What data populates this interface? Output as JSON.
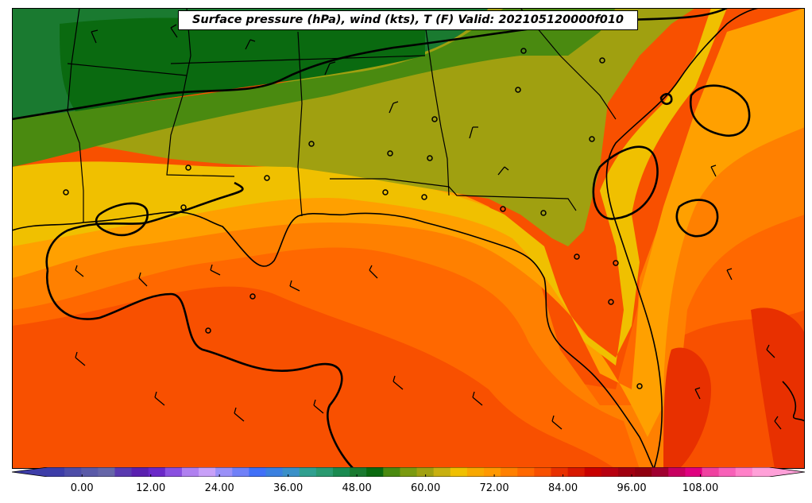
{
  "title": "Surface pressure (hPa), wind (kts), T (F) Valid: 202105120000f010",
  "colorbar": {
    "ticks": [
      "0.00",
      "12.00",
      "24.00",
      "36.00",
      "48.00",
      "60.00",
      "72.00",
      "84.00",
      "96.00",
      "108.00"
    ],
    "tick_values": [
      0,
      12,
      24,
      36,
      48,
      60,
      72,
      84,
      96,
      108
    ],
    "range": [
      -6,
      120
    ],
    "extend": "both",
    "colors": [
      "#3d3da8",
      "#4d4da8",
      "#5a5aa8",
      "#6666a8",
      "#5a3ab0",
      "#5a20b0",
      "#6a28c8",
      "#8a50e0",
      "#b080f0",
      "#c8a0f8",
      "#9a90f8",
      "#7080f8",
      "#4070f8",
      "#3a80e0",
      "#3a90c8",
      "#30a090",
      "#2a9a70",
      "#1a8a50",
      "#1a7a30",
      "#0a6a10",
      "#4a8a10",
      "#7a9a10",
      "#a0a010",
      "#c8b010",
      "#f0c000",
      "#f8a800",
      "#ff9800",
      "#ff8000",
      "#ff6800",
      "#f85000",
      "#e83000",
      "#d81800",
      "#c80000",
      "#b80010",
      "#a00010",
      "#900010",
      "#a00030",
      "#c80060",
      "#e00080",
      "#f040a0",
      "#f860b8",
      "#ff80c8",
      "#ffa0d8"
    ]
  },
  "field_colors": {
    "darkgreen": "#0a6a10",
    "green": "#1a7a30",
    "midgreen": "#4a8a10",
    "olive": "#a0a010",
    "yellow": "#f0c000",
    "lightorange": "#f8a800",
    "orange": "#ff8000",
    "darkorange": "#f85000",
    "red": "#e83000"
  }
}
